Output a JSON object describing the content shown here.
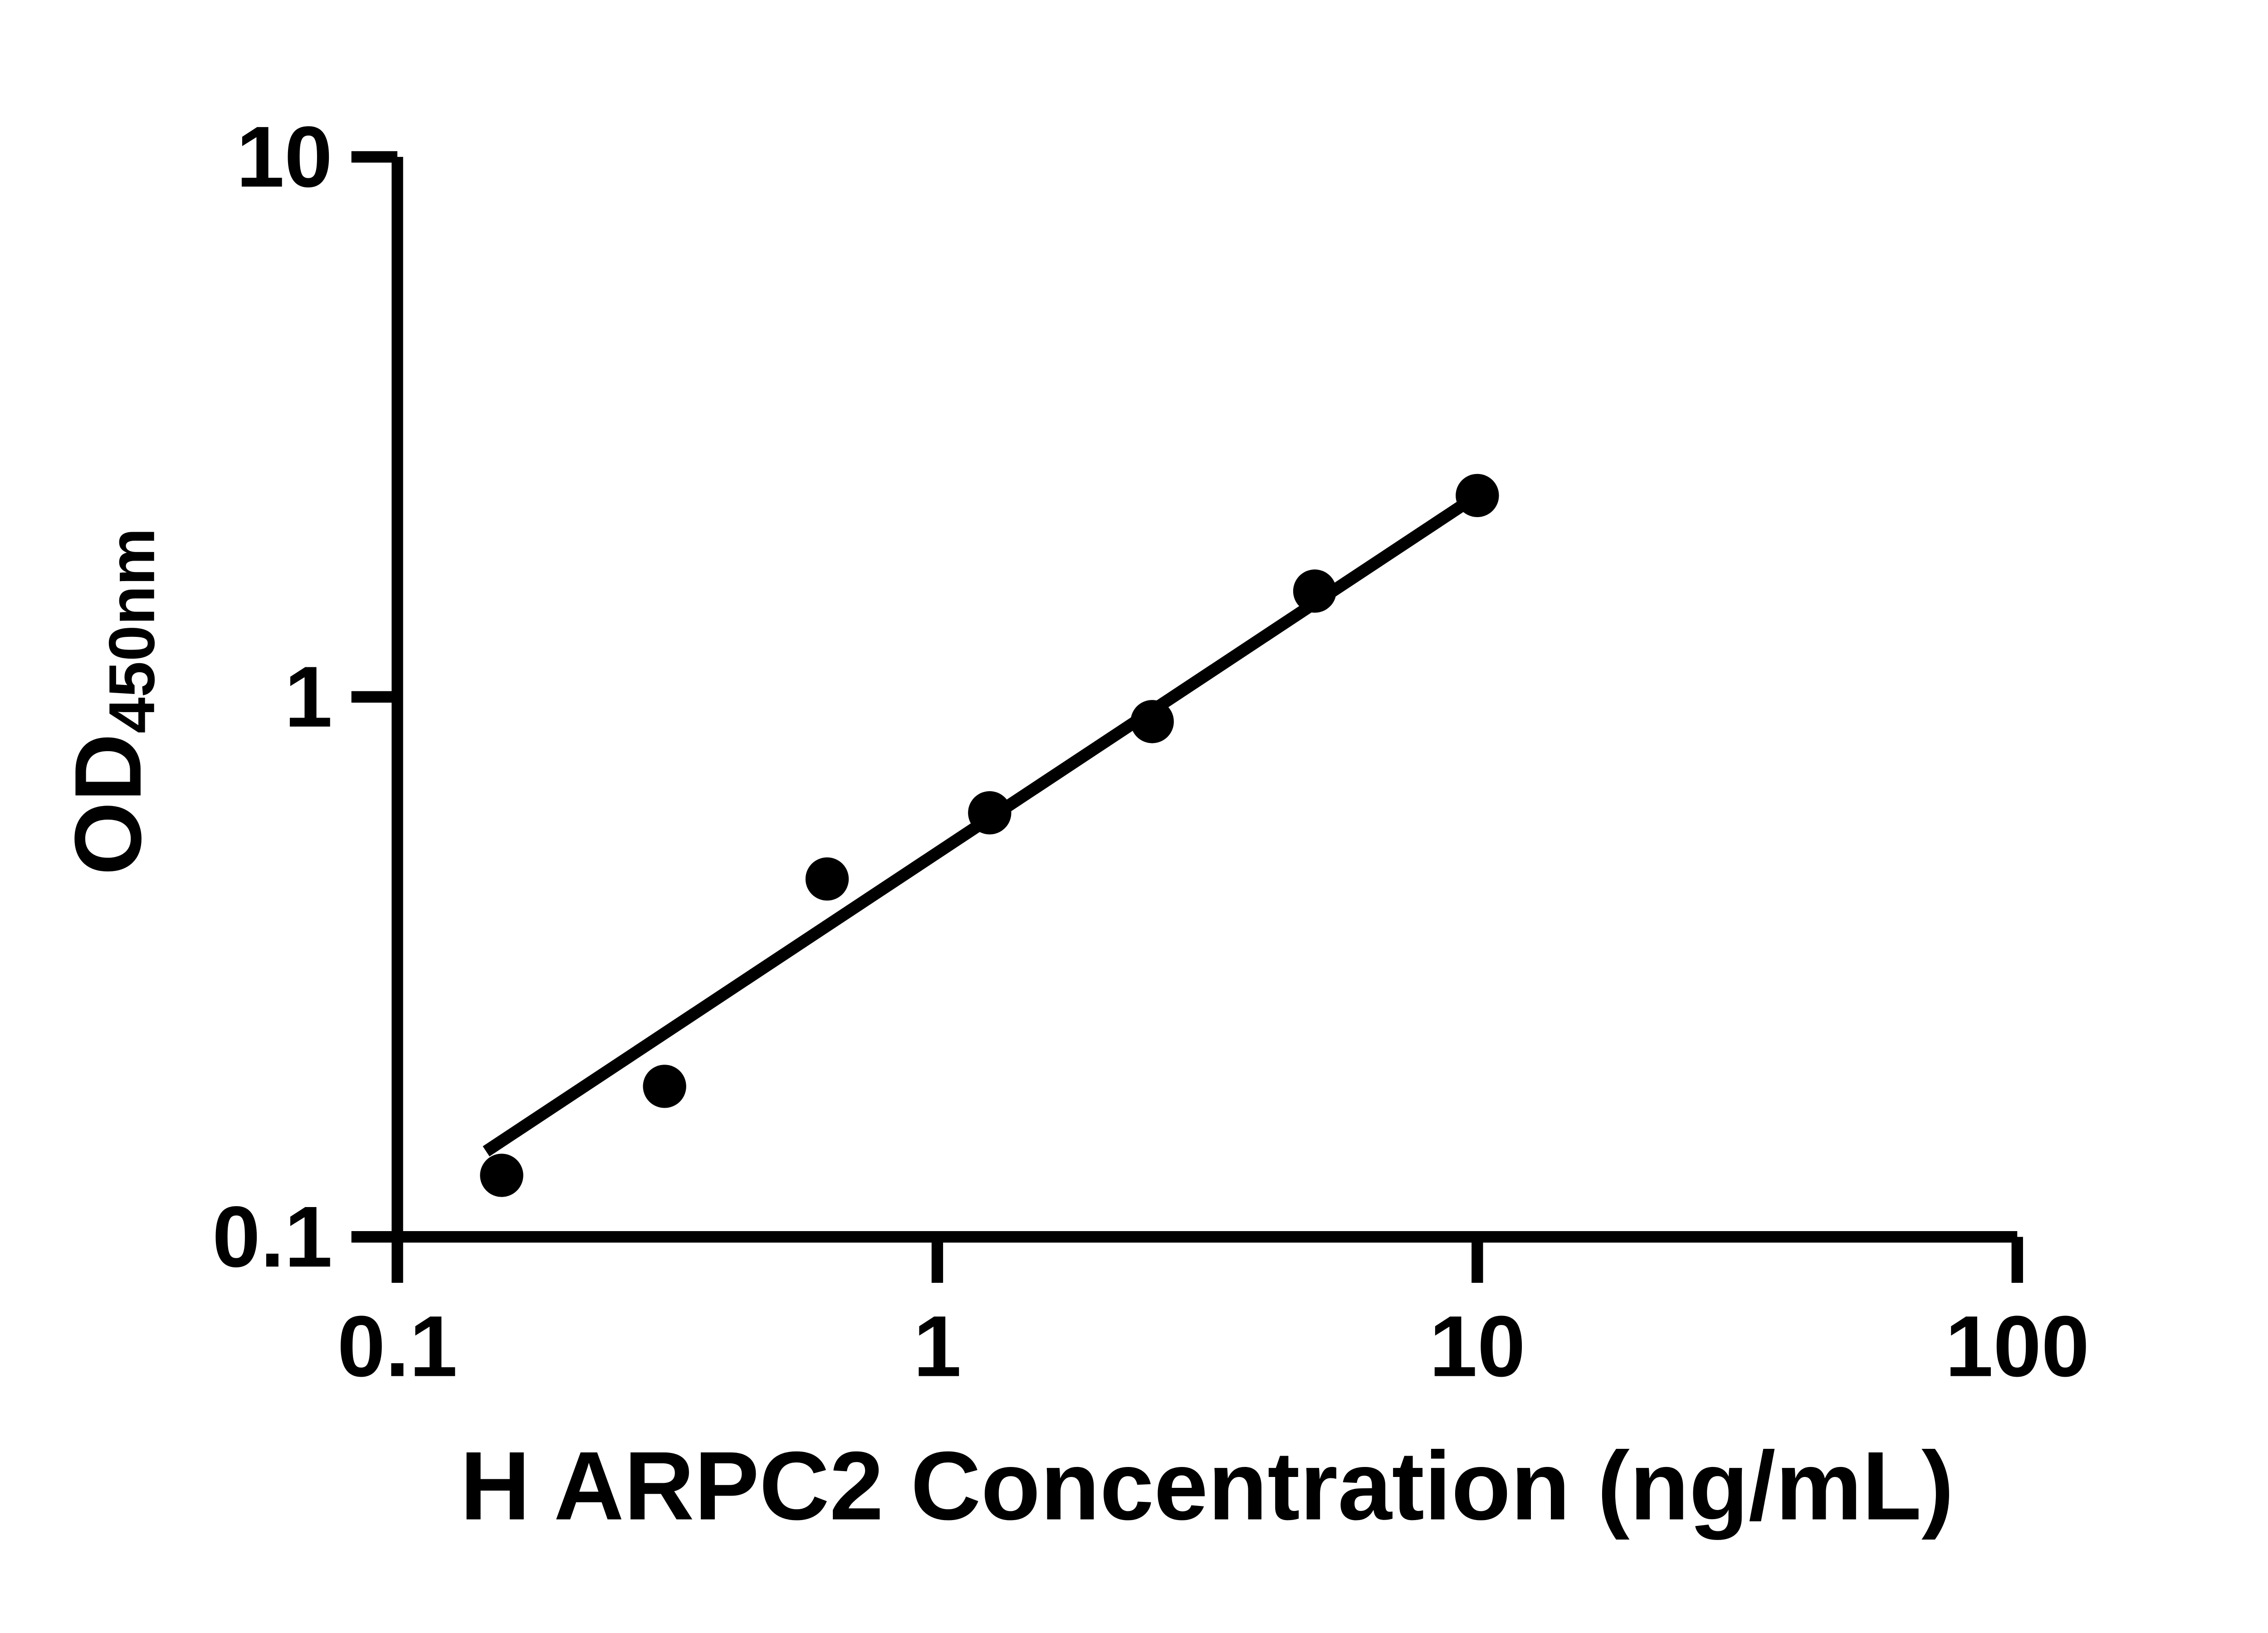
{
  "chart_data": {
    "type": "scatter",
    "title": "",
    "xlabel": "H ARPC2 Concentration (ng/mL)",
    "ylabel_main": "OD",
    "ylabel_sub": "450nm",
    "x_scale": "log",
    "y_scale": "log",
    "xlim": [
      0.1,
      100
    ],
    "ylim": [
      0.1,
      10
    ],
    "grid": false,
    "legend_position": "none",
    "x_ticks": [
      {
        "value": 0.1,
        "label": "0.1"
      },
      {
        "value": 1,
        "label": "1"
      },
      {
        "value": 10,
        "label": "10"
      },
      {
        "value": 100,
        "label": "100"
      }
    ],
    "y_ticks": [
      {
        "value": 0.1,
        "label": "0.1"
      },
      {
        "value": 1,
        "label": "1"
      },
      {
        "value": 10,
        "label": "10"
      }
    ],
    "series": [
      {
        "name": "standard-curve-points",
        "marker": "circle",
        "color": "#000000",
        "points": [
          {
            "x": 0.156,
            "y": 0.13
          },
          {
            "x": 0.3125,
            "y": 0.19
          },
          {
            "x": 0.625,
            "y": 0.46
          },
          {
            "x": 1.25,
            "y": 0.61
          },
          {
            "x": 2.5,
            "y": 0.9
          },
          {
            "x": 5,
            "y": 1.57
          },
          {
            "x": 10,
            "y": 2.36
          }
        ]
      }
    ],
    "trendline": {
      "x1": 0.146,
      "y1": 0.144,
      "x2": 10,
      "y2": 2.36,
      "color": "#000000"
    },
    "colors": {
      "axis": "#000000",
      "marker": "#000000",
      "line": "#000000",
      "background": "#ffffff"
    }
  }
}
